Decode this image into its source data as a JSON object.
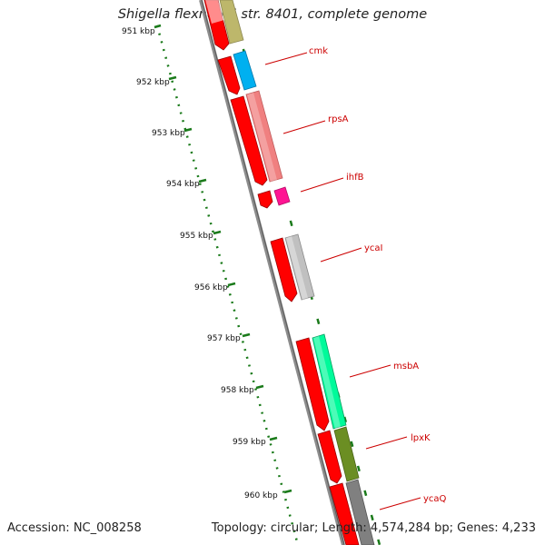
{
  "header": {
    "title": "Shigella flexneri 5 str. 8401, complete genome"
  },
  "footer": {
    "accession": "Accession: NC_008258",
    "summary": "Topology: circular; Length: 4,574,284 bp; Genes: 4,233"
  },
  "ruler": {
    "unit": "kbp",
    "ticks": [
      "951 kbp",
      "952 kbp",
      "953 kbp",
      "954 kbp",
      "955 kbp",
      "956 kbp",
      "957 kbp",
      "958 kbp",
      "959 kbp",
      "960 kbp"
    ]
  },
  "genes": [
    {
      "label": "cmk",
      "color": "#00b0f0"
    },
    {
      "label": "rpsA",
      "color": "#f08080"
    },
    {
      "label": "ihfB",
      "color": "#ff1493"
    },
    {
      "label": "ycaI",
      "color": "#c0c0c0"
    },
    {
      "label": "msbA",
      "color": "#00fa9a"
    },
    {
      "label": "lpxK",
      "color": "#6b8e23"
    },
    {
      "label": "ycaQ",
      "color": "#808080"
    }
  ],
  "colors": {
    "backbone": "#8c8c8c",
    "tick_green": "#1a7a1a",
    "cds_red": "#ff0000",
    "label_red": "#cc0000",
    "top_partial": "#bdb76b"
  }
}
